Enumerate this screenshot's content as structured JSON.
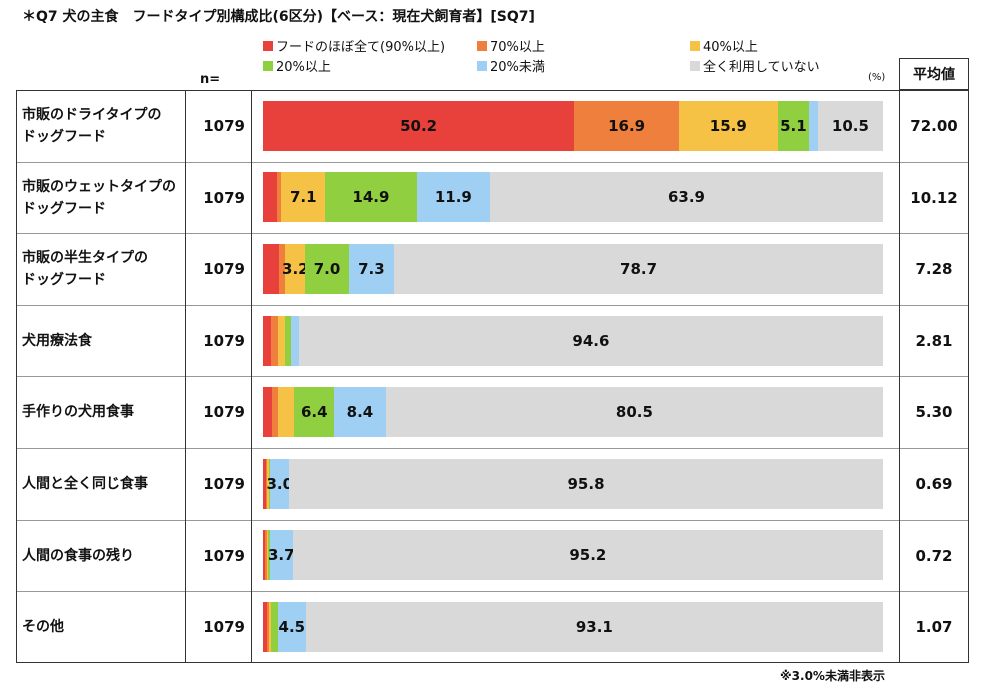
{
  "title": "＊Q7 犬の主食　フードタイプ別構成比(6区分)【ベース：現在犬飼育者】[SQ7]",
  "n_header": "n=",
  "unit_label": "(%)",
  "avg_header": "平均値",
  "footnote": "※3.0%未満非表示",
  "colors": {
    "c1": "#e8403a",
    "c2": "#ee7f3d",
    "c3": "#f6c245",
    "c4": "#90cf3f",
    "c5": "#9fcff3",
    "c6": "#d9d9d9"
  },
  "chart_data": {
    "type": "bar",
    "orientation": "horizontal-stacked-100",
    "categories": [
      "市販のドライタイプのドッグフード",
      "市販のウェットタイプのドッグフード",
      "市販の半生タイプのドッグフード",
      "犬用療法食",
      "手作りの犬用食事",
      "人間と全く同じ食事",
      "人間の食事の残り",
      "その他"
    ],
    "category_lines": [
      [
        "市販のドライタイプの",
        "ドッグフード"
      ],
      [
        "市販のウェットタイプの",
        "ドッグフード"
      ],
      [
        "市販の半生タイプの",
        "ドッグフード"
      ],
      [
        "犬用療法食"
      ],
      [
        "手作りの犬用食事"
      ],
      [
        "人間と全く同じ食事"
      ],
      [
        "人間の食事の残り"
      ],
      [
        "その他"
      ]
    ],
    "n": [
      "1079",
      "1079",
      "1079",
      "1079",
      "1079",
      "1079",
      "1079",
      "1079"
    ],
    "average": [
      "72.00",
      "10.12",
      "7.28",
      "2.81",
      "5.30",
      "0.69",
      "0.72",
      "1.07"
    ],
    "series": [
      {
        "name": "フードのほぼ全て(90%以上)",
        "color": "#e8403a",
        "values": [
          50.2,
          2.2,
          2.6,
          1.3,
          1.4,
          0.5,
          0.4,
          0.7
        ]
      },
      {
        "name": "70%以上",
        "color": "#ee7f3d",
        "values": [
          16.9,
          0.8,
          1.0,
          1.1,
          1.0,
          0.2,
          0.2,
          0.3
        ]
      },
      {
        "name": "40%以上",
        "color": "#f6c245",
        "values": [
          15.9,
          7.1,
          3.2,
          1.2,
          2.7,
          0.2,
          0.2,
          0.3
        ]
      },
      {
        "name": "20%以上",
        "color": "#90cf3f",
        "values": [
          5.1,
          14.9,
          7.0,
          0.9,
          6.4,
          0.3,
          0.3,
          1.1
        ]
      },
      {
        "name": "20%未満",
        "color": "#9fcff3",
        "values": [
          1.4,
          11.9,
          7.3,
          1.3,
          8.4,
          3.0,
          3.7,
          4.5
        ]
      },
      {
        "name": "全く利用していない",
        "color": "#d9d9d9",
        "values": [
          10.5,
          63.9,
          78.7,
          94.6,
          80.5,
          95.8,
          95.2,
          93.1
        ]
      }
    ],
    "label_threshold": 3.0,
    "xlim": [
      0,
      100
    ]
  }
}
